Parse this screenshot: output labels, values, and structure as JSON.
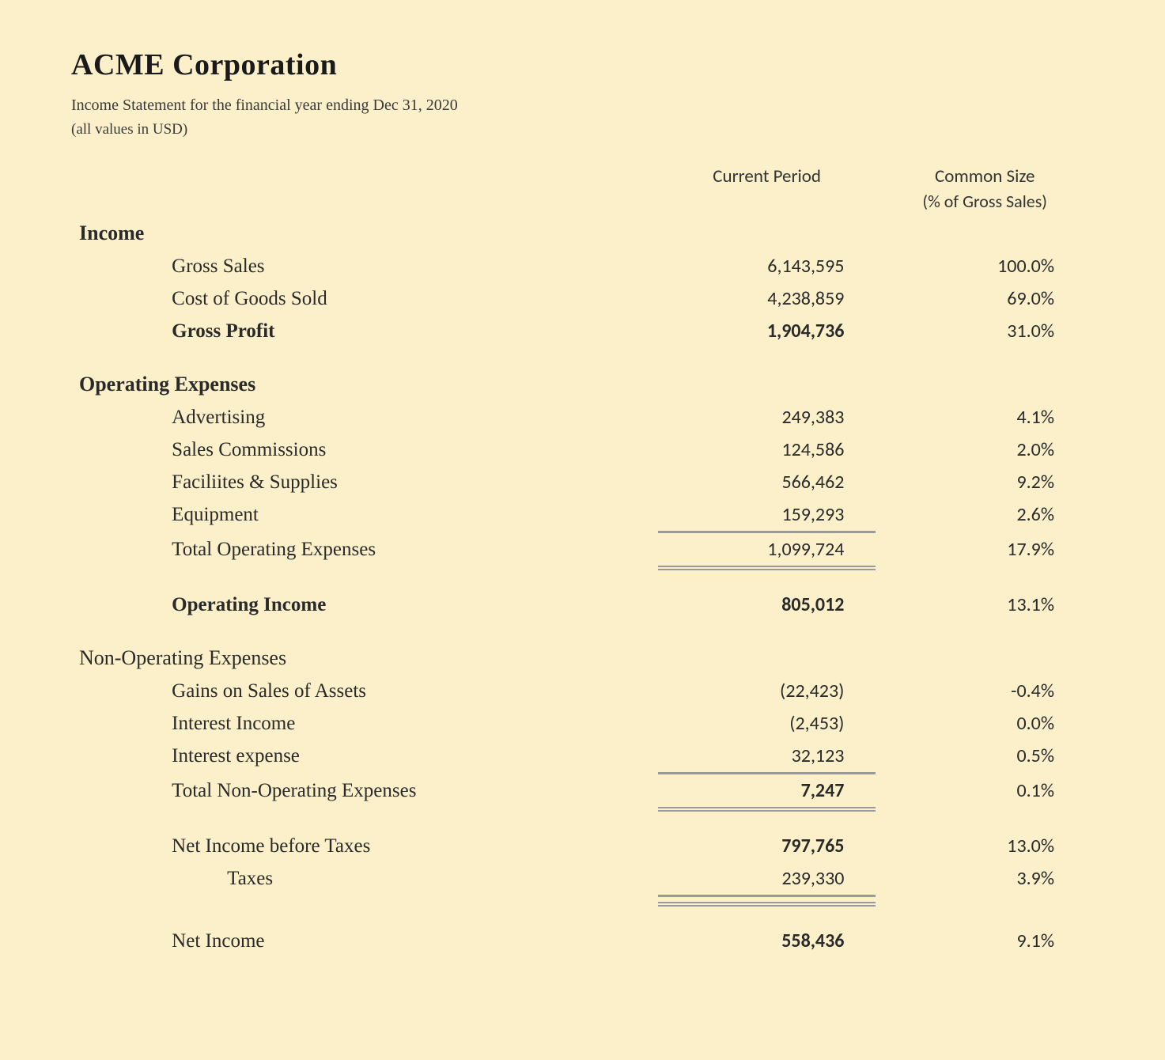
{
  "meta": {
    "company": "ACME Corporation",
    "subtitle": "Income Statement for the financial year ending Dec 31, 2020",
    "note": "(all values in USD)"
  },
  "columns": {
    "period_header": "Current Period",
    "common_header": "Common Size",
    "common_subheader": "(% of Gross Sales)"
  },
  "styling": {
    "background_color": "#fbf0c9",
    "text_color": "#2a2a2a",
    "rule_color": "#9a9a9a",
    "title_fontsize_pt": 29,
    "body_fontsize_pt": 19,
    "number_font": "Gill Sans",
    "label_font": "Bookman Old Style"
  },
  "sections": {
    "income": {
      "title": "Income",
      "rows": [
        {
          "label": "Gross Sales",
          "value": "6,143,595",
          "pct": "100.0%"
        },
        {
          "label": "Cost of Goods Sold",
          "value": "4,238,859",
          "pct": "69.0%"
        }
      ],
      "total": {
        "label": "Gross Profit",
        "value": "1,904,736",
        "pct": "31.0%"
      }
    },
    "opex": {
      "title": "Operating Expenses",
      "rows": [
        {
          "label": "Advertising",
          "value": "249,383",
          "pct": "4.1%"
        },
        {
          "label": "Sales Commissions",
          "value": "124,586",
          "pct": "2.0%"
        },
        {
          "label": "Faciliites & Supplies",
          "value": "566,462",
          "pct": "9.2%"
        },
        {
          "label": "Equipment",
          "value": "159,293",
          "pct": "2.6%"
        }
      ],
      "total": {
        "label": "Total Operating Expenses",
        "value": "1,099,724",
        "pct": "17.9%"
      }
    },
    "op_income": {
      "label": "Operating Income",
      "value": "805,012",
      "pct": "13.1%"
    },
    "nonop": {
      "title": "Non-Operating Expenses",
      "rows": [
        {
          "label": "Gains on Sales of Assets",
          "value": "(22,423)",
          "pct": "-0.4%"
        },
        {
          "label": "Interest Income",
          "value": "(2,453)",
          "pct": "0.0%"
        },
        {
          "label": "Interest expense",
          "value": "32,123",
          "pct": "0.5%"
        }
      ],
      "total": {
        "label": "Total Non-Operating Expenses",
        "value": "7,247",
        "pct": "0.1%"
      }
    },
    "pretax": {
      "label": "Net Income before Taxes",
      "value": "797,765",
      "pct": "13.0%"
    },
    "taxes": {
      "label": "Taxes",
      "value": "239,330",
      "pct": "3.9%"
    },
    "net": {
      "label": "Net Income",
      "value": "558,436",
      "pct": "9.1%"
    }
  }
}
